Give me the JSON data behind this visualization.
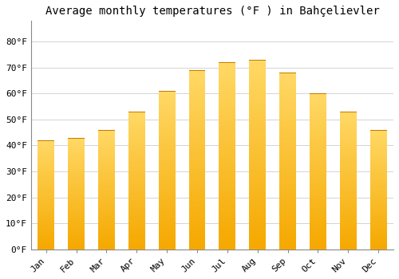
{
  "title": "Average monthly temperatures (°F ) in Bahçelievler",
  "months": [
    "Jan",
    "Feb",
    "Mar",
    "Apr",
    "May",
    "Jun",
    "Jul",
    "Aug",
    "Sep",
    "Oct",
    "Nov",
    "Dec"
  ],
  "values": [
    42,
    43,
    46,
    53,
    61,
    69,
    72,
    73,
    68,
    60,
    53,
    46
  ],
  "bar_color_bottom": "#F5A800",
  "bar_color_top": "#FFD966",
  "background_color": "#FFFFFF",
  "grid_color": "#CCCCCC",
  "yticks": [
    0,
    10,
    20,
    30,
    40,
    50,
    60,
    70,
    80
  ],
  "ytick_labels": [
    "0°F",
    "10°F",
    "20°F",
    "30°F",
    "40°F",
    "50°F",
    "60°F",
    "70°F",
    "80°F"
  ],
  "ylim": [
    0,
    88
  ],
  "title_fontsize": 10,
  "tick_fontsize": 8,
  "font_family": "monospace",
  "bar_width": 0.55
}
